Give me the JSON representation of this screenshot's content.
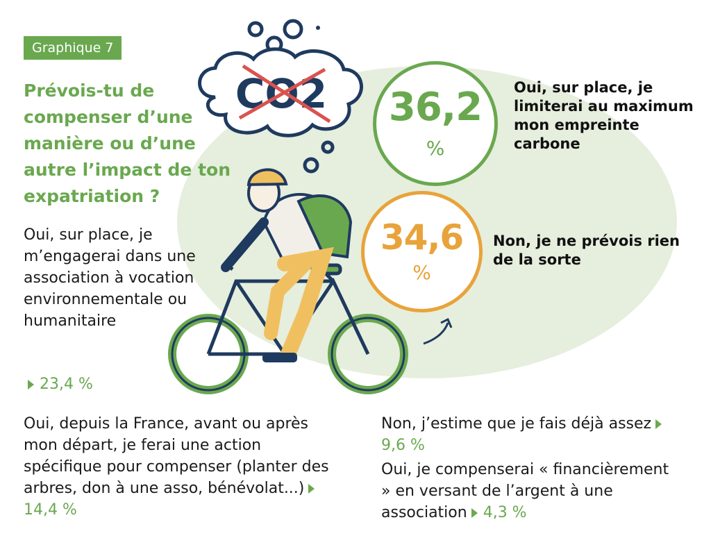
{
  "tag": "Graphique 7",
  "question": "Prévois-tu de compenser d’une manière ou d’une autre l’impact de ton expatriation ?",
  "co2_label": "CO2",
  "chart_data": {
    "type": "bar",
    "categories": [
      "Oui, sur place, je limiterai au maximum mon empreinte carbone",
      "Non, je ne prévois rien de la sorte",
      "Oui, sur place, je m’engagerai dans une association à vocation environnementale ou humanitaire",
      "Oui, depuis la France, avant ou après mon départ, je ferai une action spécifique pour compenser (planter des arbres, don à une asso, bénévolat...)",
      "Non, j’estime que je fais déjà assez",
      "Oui, je compenserai « financièrement » en versant de l’argent à une association"
    ],
    "values": [
      36.2,
      34.6,
      23.4,
      14.4,
      9.6,
      4.3
    ]
  },
  "answers": {
    "green": {
      "num": "36,2",
      "unit": "%",
      "label": "Oui, sur place, je limiterai au maximum mon empreinte carbone",
      "color": "#6aa84f"
    },
    "orange": {
      "num": "34,6",
      "unit": "%",
      "label": "Non, je ne prévois rien de la sorte",
      "color": "#e8a33a"
    },
    "assoc": {
      "label": "Oui, sur place, je m’engagerai dans une association à vocation environnementale ou humanitaire",
      "pct": "23,4 %"
    },
    "france": {
      "label": "Oui, depuis la France, avant ou après mon départ, je ferai une action spécifique pour compenser (planter des arbres, don à une asso, bénévolat...)",
      "pct": "14,4  %"
    },
    "non": {
      "label": "Non, j’estime que je fais déjà assez",
      "pct": "9,6 %"
    },
    "fin": {
      "label": "Oui, je compenserai « financièrement » en versant de l’argent à une association",
      "pct": "4,3 %"
    }
  },
  "colors": {
    "green": "#6aa84f",
    "orange": "#e8a33a",
    "navy": "#1f3a5f",
    "red": "#d9534f"
  }
}
